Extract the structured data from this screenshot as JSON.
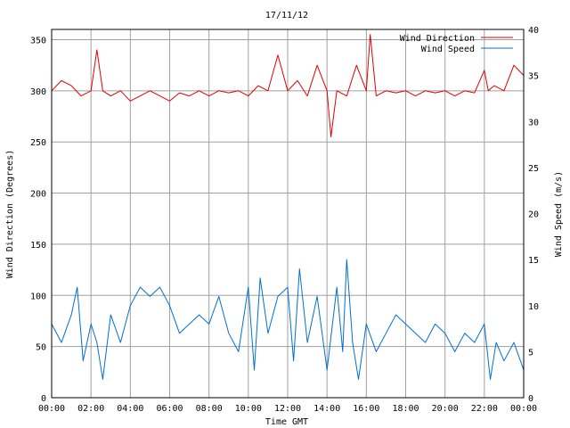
{
  "chart_data": {
    "type": "line",
    "title": "17/11/12",
    "xlabel": "Time GMT",
    "ylabel_left": "Wind Direction (Degrees)",
    "ylabel_right": "Wind Speed (m/s)",
    "x_ticks": [
      "00:00",
      "02:00",
      "04:00",
      "06:00",
      "08:00",
      "10:00",
      "12:00",
      "14:00",
      "16:00",
      "18:00",
      "20:00",
      "22:00",
      "00:00"
    ],
    "x_range_hours": [
      0,
      24
    ],
    "y_left": {
      "min": 0,
      "max": 360,
      "ticks": [
        0,
        50,
        100,
        150,
        200,
        250,
        300,
        350
      ]
    },
    "y_right": {
      "min": 0,
      "max": 40,
      "ticks": [
        0,
        5,
        10,
        15,
        20,
        25,
        30,
        35,
        40
      ]
    },
    "grid": true,
    "legend": "top-right",
    "series": [
      {
        "name": "Wind Direction",
        "axis": "left",
        "color": "#e00000",
        "x": [
          0,
          0.5,
          1,
          1.5,
          2,
          2.3,
          2.6,
          3,
          3.5,
          4,
          4.5,
          5,
          5.5,
          6,
          6.5,
          7,
          7.5,
          8,
          8.5,
          9,
          9.5,
          10,
          10.5,
          11,
          11.5,
          12,
          12.5,
          13,
          13.5,
          14,
          14.2,
          14.5,
          15,
          15.5,
          16,
          16.2,
          16.5,
          17,
          17.5,
          18,
          18.5,
          19,
          19.5,
          20,
          20.5,
          21,
          21.5,
          22,
          22.2,
          22.5,
          23,
          23.5,
          24
        ],
        "values": [
          300,
          310,
          305,
          295,
          300,
          340,
          300,
          295,
          300,
          290,
          295,
          300,
          295,
          290,
          298,
          295,
          300,
          295,
          300,
          298,
          300,
          295,
          305,
          300,
          335,
          300,
          310,
          295,
          325,
          300,
          255,
          300,
          295,
          325,
          300,
          355,
          295,
          300,
          298,
          300,
          295,
          300,
          298,
          300,
          295,
          300,
          298,
          320,
          300,
          305,
          300,
          325,
          315
        ]
      },
      {
        "name": "Wind Speed",
        "axis": "right",
        "color": "#0070d0",
        "x": [
          0,
          0.5,
          1,
          1.3,
          1.6,
          2,
          2.3,
          2.6,
          3,
          3.5,
          4,
          4.5,
          5,
          5.5,
          6,
          6.5,
          7,
          7.5,
          8,
          8.5,
          9,
          9.5,
          10,
          10.3,
          10.6,
          11,
          11.5,
          12,
          12.3,
          12.6,
          13,
          13.5,
          14,
          14.5,
          14.8,
          15,
          15.3,
          15.6,
          16,
          16.5,
          17,
          17.5,
          18,
          18.5,
          19,
          19.5,
          20,
          20.5,
          21,
          21.5,
          22,
          22.3,
          22.6,
          23,
          23.5,
          24
        ],
        "values": [
          8,
          6,
          9,
          12,
          4,
          8,
          6,
          2,
          9,
          6,
          10,
          12,
          11,
          12,
          10,
          7,
          8,
          9,
          8,
          11,
          7,
          5,
          12,
          3,
          13,
          7,
          11,
          12,
          4,
          14,
          6,
          11,
          3,
          12,
          5,
          15,
          6,
          2,
          8,
          5,
          7,
          9,
          8,
          7,
          6,
          8,
          7,
          5,
          7,
          6,
          8,
          2,
          6,
          4,
          6,
          3
        ]
      }
    ]
  }
}
